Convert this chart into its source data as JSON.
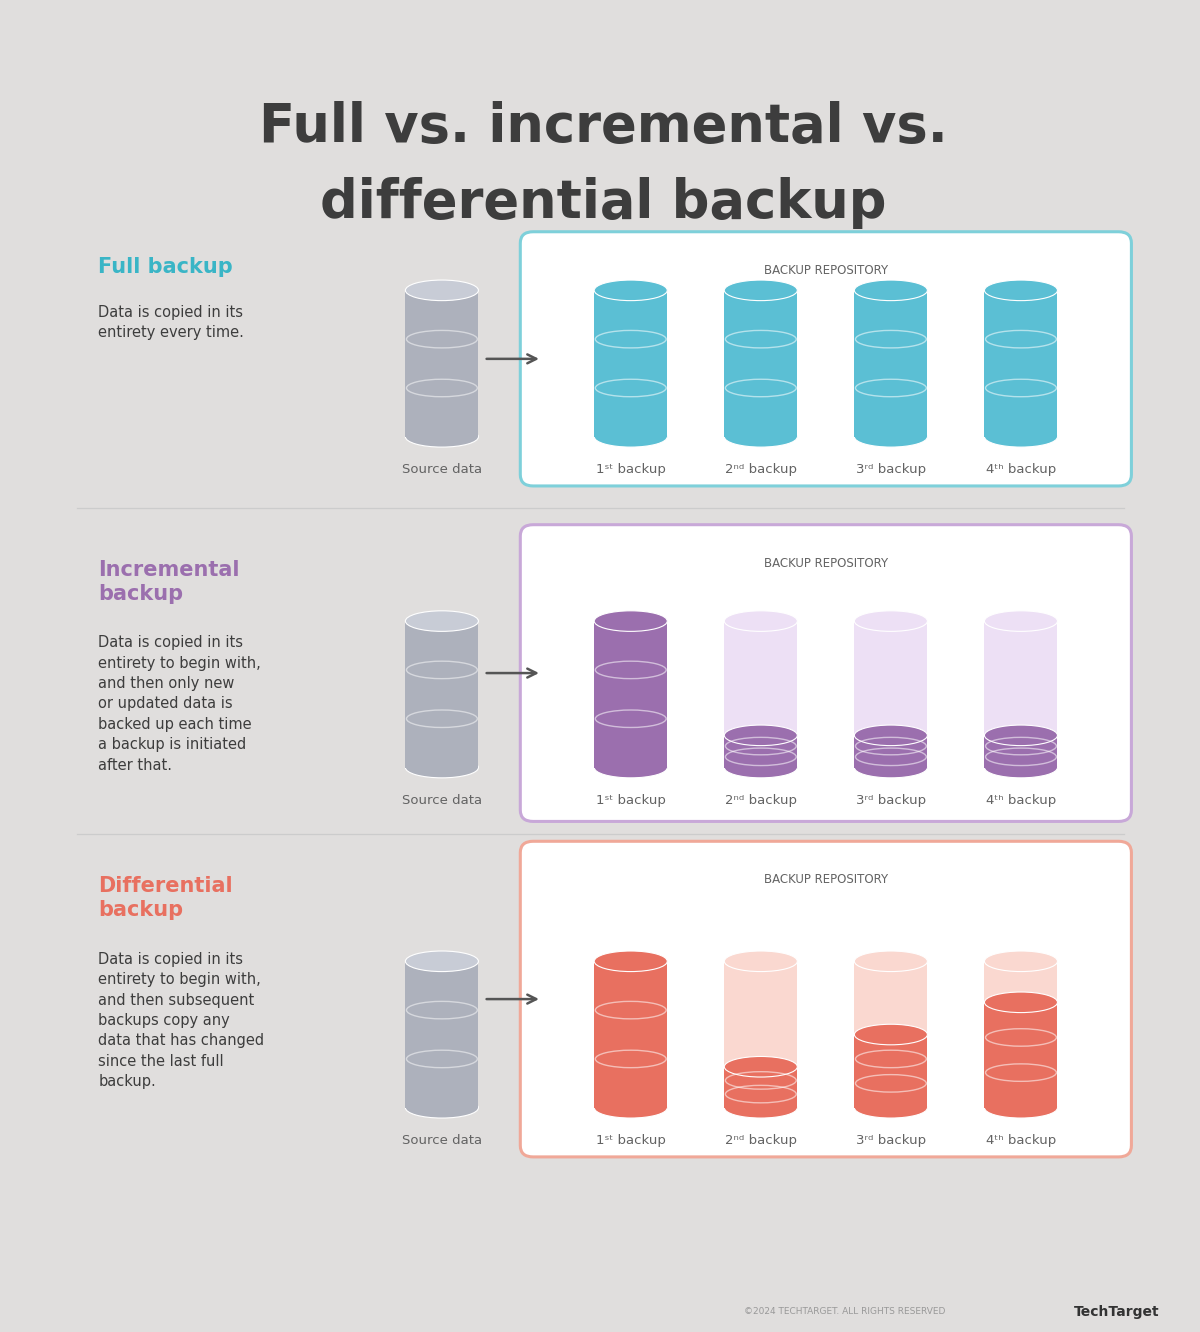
{
  "title_line1": "Full vs. incremental vs.",
  "title_line2": "differential backup",
  "title_color": "#3d3d3d",
  "title_fontsize": 38,
  "bg_outer": "#e0dedd",
  "bg_inner": "#ffffff",
  "sections": [
    {
      "heading": "Full backup",
      "heading_color": "#3ab5c6",
      "heading_multiline": false,
      "text": "Data is copied in its\nentirety every time.",
      "text_color": "#3d3d3d",
      "box_border_color": "#7ed0da",
      "repo_label": "BACKUP REPOSITORY",
      "cylinders": [
        {
          "fill_ratio": 1.0,
          "color": "#5bbfd4",
          "light_color": "#c8e8f0"
        },
        {
          "fill_ratio": 1.0,
          "color": "#5bbfd4",
          "light_color": "#c8e8f0"
        },
        {
          "fill_ratio": 1.0,
          "color": "#5bbfd4",
          "light_color": "#c8e8f0"
        },
        {
          "fill_ratio": 1.0,
          "color": "#5bbfd4",
          "light_color": "#c8e8f0"
        }
      ],
      "labels": [
        "1ˢᵗ backup",
        "2ⁿᵈ backup",
        "3ʳᵈ backup",
        "4ᵗʰ backup"
      ]
    },
    {
      "heading": "Incremental\nbackup",
      "heading_color": "#9b6fae",
      "heading_multiline": true,
      "text": "Data is copied in its\nentirety to begin with,\nand then only new\nor updated data is\nbacked up each time\na backup is initiated\nafter that.",
      "text_color": "#3d3d3d",
      "box_border_color": "#c8a8d8",
      "repo_label": "BACKUP REPOSITORY",
      "cylinders": [
        {
          "fill_ratio": 1.0,
          "color": "#9b6fae",
          "light_color": "#dfd0ea"
        },
        {
          "fill_ratio": 0.22,
          "color": "#9b6fae",
          "light_color": "#ede0f5"
        },
        {
          "fill_ratio": 0.22,
          "color": "#9b6fae",
          "light_color": "#ede0f5"
        },
        {
          "fill_ratio": 0.22,
          "color": "#9b6fae",
          "light_color": "#ede0f5"
        }
      ],
      "labels": [
        "1ˢᵗ backup",
        "2ⁿᵈ backup",
        "3ʳᵈ backup",
        "4ᵗʰ backup"
      ]
    },
    {
      "heading": "Differential\nbackup",
      "heading_color": "#e87060",
      "heading_multiline": true,
      "text": "Data is copied in its\nentirety to begin with,\nand then subsequent\nbackups copy any\ndata that has changed\nsince the last full\nbackup.",
      "text_color": "#3d3d3d",
      "box_border_color": "#f0a898",
      "repo_label": "BACKUP REPOSITORY",
      "cylinders": [
        {
          "fill_ratio": 1.0,
          "color": "#e87060",
          "light_color": "#f5c0b0"
        },
        {
          "fill_ratio": 0.28,
          "color": "#e87060",
          "light_color": "#fad8d0"
        },
        {
          "fill_ratio": 0.5,
          "color": "#e87060",
          "light_color": "#fad8d0"
        },
        {
          "fill_ratio": 0.72,
          "color": "#e87060",
          "light_color": "#fad8d0"
        }
      ],
      "labels": [
        "1ˢᵗ backup",
        "2ⁿᵈ backup",
        "3ʳᵈ backup",
        "4ᵗʰ backup"
      ]
    }
  ],
  "source_label": "Source data",
  "footer_text": "©2024 TECHTARGET. ALL RIGHTS RESERVED",
  "footer_brand": "TechTarget"
}
